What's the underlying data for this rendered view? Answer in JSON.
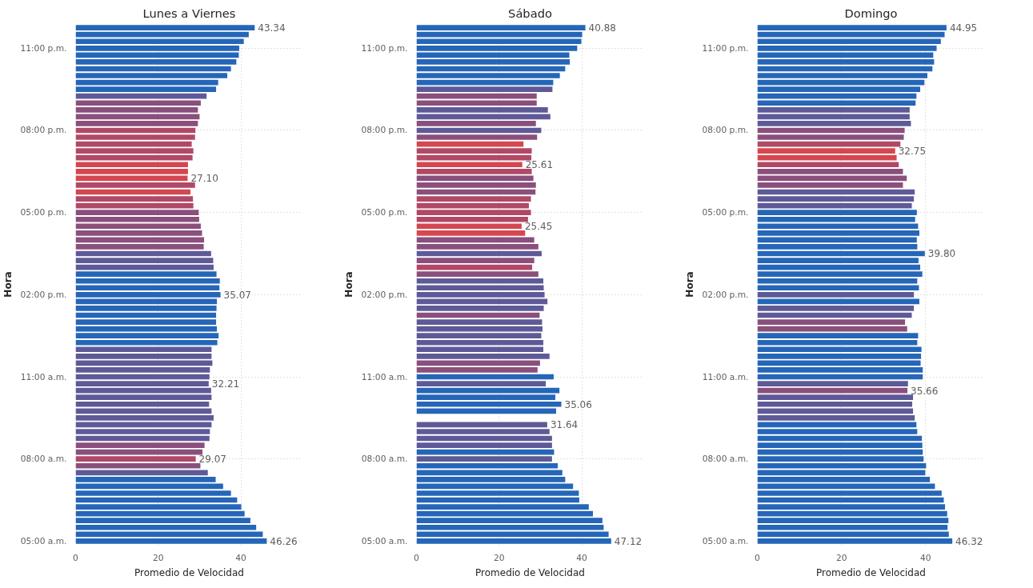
{
  "chart_data": [
    {
      "type": "bar",
      "orientation": "horizontal",
      "title": "Lunes a Viernes",
      "xlabel": "Promedio de Velocidad",
      "ylabel": "Hora",
      "xlim": [
        0,
        55
      ],
      "xticks": [
        0,
        20,
        40
      ],
      "grid": true,
      "categories": [
        null,
        null,
        null,
        "11:00 p.m.",
        null,
        null,
        null,
        null,
        null,
        null,
        null,
        null,
        null,
        null,
        null,
        "08:00 p.m.",
        null,
        null,
        null,
        null,
        null,
        null,
        null,
        null,
        null,
        null,
        null,
        "05:00 p.m.",
        null,
        null,
        null,
        null,
        null,
        null,
        null,
        null,
        null,
        null,
        null,
        "02:00 p.m.",
        null,
        null,
        null,
        null,
        null,
        null,
        null,
        null,
        null,
        null,
        null,
        "11:00 a.m.",
        null,
        null,
        null,
        null,
        null,
        null,
        null,
        null,
        null,
        null,
        null,
        "08:00 a.m.",
        null,
        null,
        null,
        null,
        null,
        null,
        null,
        null,
        null,
        null,
        null,
        "05:00 a.m."
      ],
      "values": [
        43.34,
        41.9,
        40.7,
        39.6,
        39.5,
        38.9,
        37.6,
        36.7,
        34.5,
        34.0,
        31.7,
        30.3,
        29.6,
        30.0,
        29.6,
        29.0,
        28.9,
        28.1,
        28.5,
        28.3,
        27.2,
        27.2,
        27.1,
        28.9,
        27.8,
        28.4,
        28.5,
        29.8,
        29.9,
        30.3,
        30.6,
        31.1,
        31.0,
        32.8,
        33.3,
        33.4,
        34.1,
        34.9,
        34.8,
        35.07,
        34.2,
        34.1,
        34.0,
        34.0,
        34.2,
        34.6,
        34.3,
        32.9,
        32.9,
        33.1,
        32.5,
        32.4,
        32.21,
        32.8,
        32.9,
        32.3,
        32.9,
        33.4,
        32.9,
        32.5,
        32.4,
        31.2,
        30.7,
        29.07,
        30.2,
        32.0,
        33.9,
        35.7,
        37.6,
        39.1,
        40.1,
        40.9,
        42.3,
        43.7,
        45.3,
        46.26
      ],
      "colors": [
        "#2566b8",
        "#2566b8",
        "#2566b8",
        "#2566b8",
        "#2566b8",
        "#2566b8",
        "#2566b8",
        "#2566b8",
        "#2566b8",
        "#2566b8",
        "#5e5a98",
        "#8a4f7c",
        "#8a4f7c",
        "#8a4f7c",
        "#8a4f7c",
        "#b04866",
        "#b04866",
        "#b04866",
        "#b04866",
        "#b04866",
        "#d5474f",
        "#d5474f",
        "#d5474f",
        "#b04866",
        "#d5474f",
        "#b04866",
        "#b04866",
        "#8a4f7c",
        "#8a4f7c",
        "#8a4f7c",
        "#8a4f7c",
        "#8a4f7c",
        "#8a4f7c",
        "#5e5a98",
        "#5e5a98",
        "#5e5a98",
        "#2566b8",
        "#2566b8",
        "#2566b8",
        "#2566b8",
        "#2566b8",
        "#2566b8",
        "#2566b8",
        "#2566b8",
        "#2566b8",
        "#2566b8",
        "#2566b8",
        "#5e5a98",
        "#5e5a98",
        "#5e5a98",
        "#5e5a98",
        "#5e5a98",
        "#5e5a98",
        "#5e5a98",
        "#5e5a98",
        "#5e5a98",
        "#5e5a98",
        "#5e5a98",
        "#5e5a98",
        "#5e5a98",
        "#5e5a98",
        "#8a4f7c",
        "#8a4f7c",
        "#b04866",
        "#8a4f7c",
        "#5e5a98",
        "#2566b8",
        "#2566b8",
        "#2566b8",
        "#2566b8",
        "#2566b8",
        "#2566b8",
        "#2566b8",
        "#2566b8",
        "#2566b8",
        "#2566b8"
      ],
      "value_labels": [
        "43.34",
        null,
        null,
        null,
        null,
        null,
        null,
        null,
        null,
        null,
        null,
        null,
        null,
        null,
        null,
        null,
        null,
        null,
        null,
        null,
        null,
        null,
        "27.10",
        null,
        null,
        null,
        null,
        null,
        null,
        null,
        null,
        null,
        null,
        null,
        null,
        null,
        null,
        null,
        null,
        "35.07",
        null,
        null,
        null,
        null,
        null,
        null,
        null,
        null,
        null,
        null,
        null,
        null,
        "32.21",
        null,
        null,
        null,
        null,
        null,
        null,
        null,
        null,
        null,
        null,
        "29.07",
        null,
        null,
        null,
        null,
        null,
        null,
        null,
        null,
        null,
        null,
        null,
        "46.26"
      ]
    },
    {
      "type": "bar",
      "orientation": "horizontal",
      "title": "Sábado",
      "xlabel": "Promedio de Velocidad",
      "ylabel": "Hora",
      "xlim": [
        0,
        55
      ],
      "xticks": [
        0,
        20,
        40
      ],
      "grid": true,
      "categories": [
        null,
        null,
        null,
        "11:00 p.m.",
        null,
        null,
        null,
        null,
        null,
        null,
        null,
        null,
        null,
        null,
        null,
        "08:00 p.m.",
        null,
        null,
        null,
        null,
        null,
        null,
        null,
        null,
        null,
        null,
        null,
        "05:00 p.m.",
        null,
        null,
        null,
        null,
        null,
        null,
        null,
        null,
        null,
        null,
        null,
        "02:00 p.m.",
        null,
        null,
        null,
        null,
        null,
        null,
        null,
        null,
        null,
        null,
        null,
        "11:00 a.m.",
        null,
        null,
        null,
        null,
        null,
        null,
        null,
        null,
        null,
        null,
        null,
        "08:00 a.m.",
        null,
        null,
        null,
        null,
        null,
        null,
        null,
        null,
        null,
        null,
        null,
        "05:00 a.m."
      ],
      "values": [
        40.88,
        40.1,
        39.9,
        38.9,
        37.0,
        37.1,
        36.0,
        34.7,
        33.1,
        32.9,
        29.1,
        29.1,
        31.8,
        32.4,
        28.9,
        30.2,
        29.2,
        25.9,
        27.9,
        27.8,
        25.61,
        27.9,
        28.3,
        28.9,
        28.8,
        27.7,
        27.2,
        27.7,
        27.0,
        25.45,
        26.3,
        28.5,
        29.5,
        30.3,
        28.5,
        28.0,
        29.5,
        30.7,
        30.8,
        31.0,
        31.7,
        30.8,
        29.8,
        30.4,
        30.5,
        30.2,
        30.7,
        30.7,
        32.2,
        29.9,
        29.3,
        33.2,
        31.3,
        34.6,
        33.6,
        35.06,
        33.8,
        null,
        31.64,
        32.2,
        32.8,
        32.8,
        33.3,
        32.8,
        34.2,
        35.3,
        36.0,
        37.9,
        39.3,
        39.4,
        41.7,
        42.7,
        45.0,
        45.3,
        46.5,
        47.12
      ],
      "colors": [
        "#2566b8",
        "#2566b8",
        "#2566b8",
        "#2566b8",
        "#2566b8",
        "#2566b8",
        "#2566b8",
        "#2566b8",
        "#2566b8",
        "#5e5a98",
        "#8a4f7c",
        "#8a4f7c",
        "#5e5a98",
        "#5e5a98",
        "#8a4f7c",
        "#5e5a98",
        "#8a4f7c",
        "#d5474f",
        "#b04866",
        "#b04866",
        "#d5474f",
        "#b04866",
        "#8a4f7c",
        "#8a4f7c",
        "#8a4f7c",
        "#b04866",
        "#b04866",
        "#b04866",
        "#b04866",
        "#d5474f",
        "#d5474f",
        "#8a4f7c",
        "#8a4f7c",
        "#5e5a98",
        "#8a4f7c",
        "#b04866",
        "#8a4f7c",
        "#5e5a98",
        "#5e5a98",
        "#5e5a98",
        "#5e5a98",
        "#5e5a98",
        "#8a4f7c",
        "#5e5a98",
        "#5e5a98",
        "#5e5a98",
        "#5e5a98",
        "#5e5a98",
        "#5e5a98",
        "#8a4f7c",
        "#8a4f7c",
        "#2566b8",
        "#5e5a98",
        "#2566b8",
        "#2566b8",
        "#2566b8",
        "#2566b8",
        "#2566b8",
        "#5e5a98",
        "#5e5a98",
        "#5e5a98",
        "#5e5a98",
        "#2566b8",
        "#5e5a98",
        "#2566b8",
        "#2566b8",
        "#2566b8",
        "#2566b8",
        "#2566b8",
        "#2566b8",
        "#2566b8",
        "#2566b8",
        "#2566b8",
        "#2566b8",
        "#2566b8",
        "#2566b8"
      ],
      "value_labels": [
        "40.88",
        null,
        null,
        null,
        null,
        null,
        null,
        null,
        null,
        null,
        null,
        null,
        null,
        null,
        null,
        null,
        null,
        null,
        null,
        null,
        "25.61",
        null,
        null,
        null,
        null,
        null,
        null,
        null,
        null,
        "25.45",
        null,
        null,
        null,
        null,
        null,
        null,
        null,
        null,
        null,
        null,
        null,
        null,
        null,
        null,
        null,
        null,
        null,
        null,
        null,
        null,
        null,
        null,
        null,
        null,
        null,
        "35.06",
        null,
        null,
        "31.64",
        null,
        null,
        null,
        null,
        null,
        null,
        null,
        null,
        null,
        null,
        null,
        null,
        null,
        null,
        null,
        null,
        "47.12"
      ]
    },
    {
      "type": "bar",
      "orientation": "horizontal",
      "title": "Domingo",
      "xlabel": "Promedio de Velocidad",
      "ylabel": "Hora",
      "xlim": [
        0,
        54
      ],
      "xticks": [
        0,
        20,
        40
      ],
      "grid": true,
      "categories": [
        null,
        null,
        null,
        "11:00 p.m.",
        null,
        null,
        null,
        null,
        null,
        null,
        null,
        null,
        null,
        null,
        null,
        "08:00 p.m.",
        null,
        null,
        null,
        null,
        null,
        null,
        null,
        null,
        null,
        null,
        null,
        "05:00 p.m.",
        null,
        null,
        null,
        null,
        null,
        null,
        null,
        null,
        null,
        null,
        null,
        "02:00 p.m.",
        null,
        null,
        null,
        null,
        null,
        null,
        null,
        null,
        null,
        null,
        null,
        "11:00 a.m.",
        null,
        null,
        null,
        null,
        null,
        null,
        null,
        null,
        null,
        null,
        null,
        "08:00 a.m.",
        null,
        null,
        null,
        null,
        null,
        null,
        null,
        null,
        null,
        null,
        null,
        "05:00 a.m."
      ],
      "values": [
        44.95,
        44.5,
        43.6,
        42.6,
        41.8,
        42.0,
        41.6,
        40.4,
        39.7,
        38.7,
        37.8,
        37.6,
        36.2,
        36.2,
        36.5,
        35.0,
        34.8,
        34.0,
        32.75,
        33.1,
        33.6,
        34.6,
        35.5,
        34.6,
        37.4,
        37.2,
        36.7,
        37.9,
        37.5,
        38.2,
        38.5,
        37.9,
        38.0,
        39.8,
        38.3,
        38.7,
        39.2,
        38.0,
        38.4,
        37.2,
        38.5,
        37.2,
        36.7,
        35.1,
        35.6,
        38.2,
        38.0,
        39.0,
        38.9,
        38.8,
        39.3,
        39.3,
        35.8,
        35.66,
        37.0,
        36.8,
        37.0,
        37.4,
        37.8,
        38.0,
        39.1,
        39.2,
        39.3,
        39.5,
        40.1,
        39.9,
        41.0,
        42.2,
        43.8,
        44.3,
        44.6,
        45.1,
        45.4,
        45.2,
        45.5,
        46.32
      ],
      "colors": [
        "#2566b8",
        "#2566b8",
        "#2566b8",
        "#2566b8",
        "#2566b8",
        "#2566b8",
        "#2566b8",
        "#2566b8",
        "#2566b8",
        "#2566b8",
        "#2566b8",
        "#2566b8",
        "#5e5a98",
        "#5e5a98",
        "#5e5a98",
        "#8a4f7c",
        "#8a4f7c",
        "#b04866",
        "#d5474f",
        "#d5474f",
        "#b04866",
        "#8a4f7c",
        "#8a4f7c",
        "#8a4f7c",
        "#5e5a98",
        "#5e5a98",
        "#5e5a98",
        "#2566b8",
        "#2566b8",
        "#2566b8",
        "#2566b8",
        "#2566b8",
        "#2566b8",
        "#2566b8",
        "#2566b8",
        "#2566b8",
        "#2566b8",
        "#2566b8",
        "#2566b8",
        "#5e5a98",
        "#2566b8",
        "#5e5a98",
        "#5e5a98",
        "#8a4f7c",
        "#8a4f7c",
        "#2566b8",
        "#2566b8",
        "#2566b8",
        "#2566b8",
        "#2566b8",
        "#2566b8",
        "#2566b8",
        "#5e5a98",
        "#8a4f7c",
        "#5e5a98",
        "#5e5a98",
        "#5e5a98",
        "#5e5a98",
        "#2566b8",
        "#2566b8",
        "#2566b8",
        "#2566b8",
        "#2566b8",
        "#2566b8",
        "#2566b8",
        "#2566b8",
        "#2566b8",
        "#2566b8",
        "#2566b8",
        "#2566b8",
        "#2566b8",
        "#2566b8",
        "#2566b8",
        "#2566b8",
        "#2566b8",
        "#2566b8"
      ],
      "value_labels": [
        "44.95",
        null,
        null,
        null,
        null,
        null,
        null,
        null,
        null,
        null,
        null,
        null,
        null,
        null,
        null,
        null,
        null,
        null,
        "32.75",
        null,
        null,
        null,
        null,
        null,
        null,
        null,
        null,
        null,
        null,
        null,
        null,
        null,
        null,
        "39.80",
        null,
        null,
        null,
        null,
        null,
        null,
        null,
        null,
        null,
        null,
        null,
        null,
        null,
        null,
        null,
        null,
        null,
        null,
        null,
        "35.66",
        null,
        null,
        null,
        null,
        null,
        null,
        null,
        null,
        null,
        null,
        null,
        null,
        null,
        null,
        null,
        null,
        null,
        null,
        null,
        null,
        null,
        "46.32"
      ]
    }
  ]
}
